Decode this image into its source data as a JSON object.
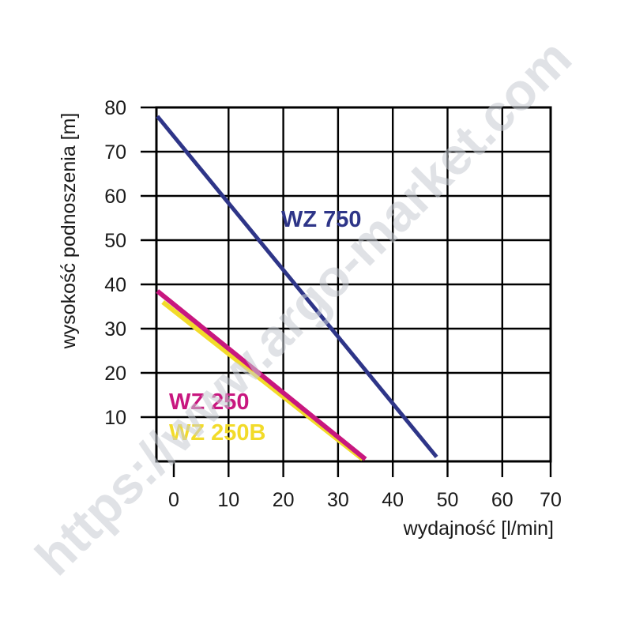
{
  "chart_data": {
    "type": "line",
    "title": "",
    "xlabel": "wydajność [l/min]",
    "ylabel": "wysokość podnoszenia [m]",
    "xlim": [
      -3,
      70
    ],
    "ylim": [
      0,
      80
    ],
    "x_ticks": [
      "0",
      "10",
      "20",
      "30",
      "40",
      "50",
      "60",
      "70"
    ],
    "y_ticks": [
      "10",
      "20",
      "30",
      "40",
      "50",
      "60",
      "70",
      "80"
    ],
    "grid": true,
    "series": [
      {
        "name": "WZ 750",
        "color": "#2e3588",
        "x": [
          -3,
          48
        ],
        "y": [
          78,
          1
        ]
      },
      {
        "name": "WZ 250",
        "color": "#c8177f",
        "x": [
          -3,
          35
        ],
        "y": [
          38.5,
          0.5
        ]
      },
      {
        "name": "WZ 250B",
        "color": "#f2db2a",
        "x": [
          -2,
          34.5
        ],
        "y": [
          36,
          0.5
        ]
      }
    ]
  },
  "watermark": "https://www.argo-market.com"
}
